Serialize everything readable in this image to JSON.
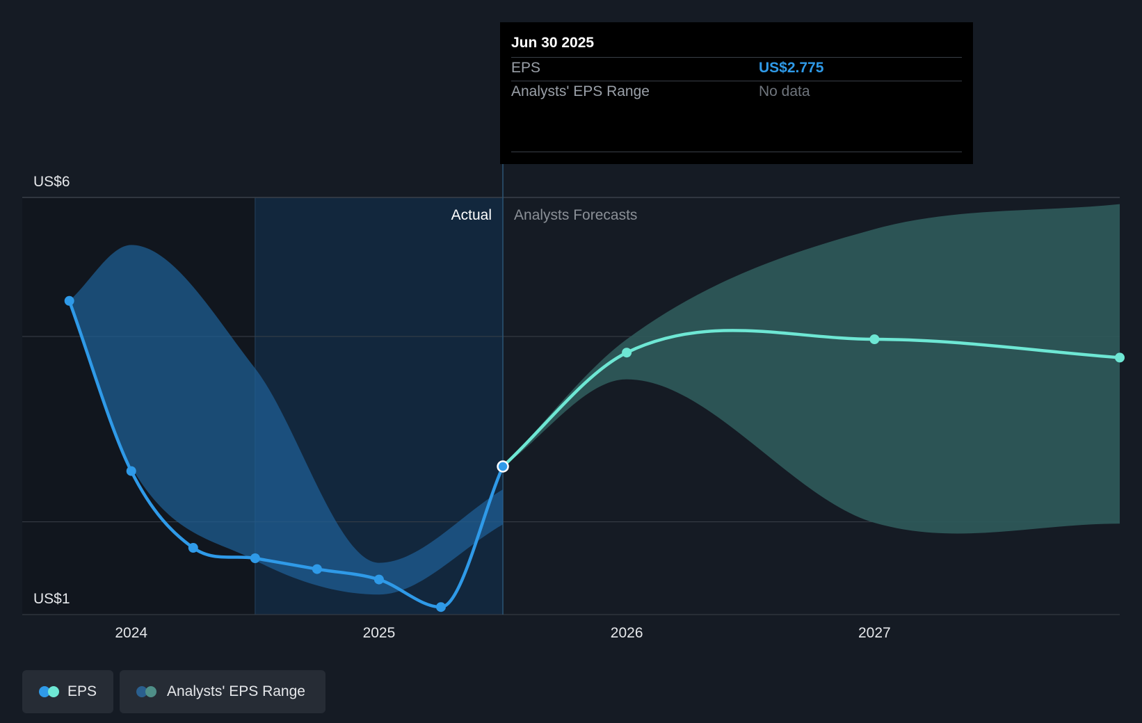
{
  "tooltip": {
    "date": "Jun 30 2025",
    "rows": [
      {
        "label": "EPS",
        "value": "US$2.775",
        "color": "#2f9ae8"
      },
      {
        "label": "Analysts' EPS Range",
        "value": "No data",
        "color": "#6f757d"
      }
    ]
  },
  "legend": [
    {
      "label": "EPS",
      "color_a": "#2f9ae8",
      "color_b": "#6ee7d4"
    },
    {
      "label": "Analysts' EPS Range",
      "color_a": "#2a5f8e",
      "color_b": "#4f8f88"
    }
  ],
  "colors": {
    "background": "#151b24",
    "actual_line": "#2f9ae8",
    "forecast_line": "#6ee7d4",
    "actual_band": "#1f5f95",
    "forecast_band": "#2f5b5b",
    "grid": "#3a4049"
  },
  "chart_data": {
    "type": "line",
    "y_axis": {
      "min": 1,
      "max": 6,
      "tick_labels": [
        {
          "value": 6,
          "label": "US$6"
        },
        {
          "value": 1,
          "label": "US$1"
        }
      ],
      "gridlines": [
        6,
        4.333,
        2.111,
        1
      ]
    },
    "x_axis": {
      "ticks": [
        {
          "value": 2024.0,
          "label": "2024"
        },
        {
          "value": 2025.0,
          "label": "2025"
        },
        {
          "value": 2026.0,
          "label": "2026"
        },
        {
          "value": 2027.0,
          "label": "2027"
        }
      ],
      "min": 2023.56,
      "max": 2027.99
    },
    "divider": {
      "x": 2025.5,
      "left_label": "Actual",
      "right_label": "Analysts Forecasts"
    },
    "highlight_start": 2024.5,
    "series": [
      {
        "name": "EPS (Actual)",
        "points": [
          {
            "x": 2023.75,
            "y": 4.76
          },
          {
            "x": 2024.0,
            "y": 2.72
          },
          {
            "x": 2024.25,
            "y": 1.8
          },
          {
            "x": 2024.5,
            "y": 1.675
          },
          {
            "x": 2024.75,
            "y": 1.545
          },
          {
            "x": 2025.0,
            "y": 1.42
          },
          {
            "x": 2025.25,
            "y": 1.09
          },
          {
            "x": 2025.5,
            "y": 2.775
          }
        ]
      },
      {
        "name": "EPS (Forecast)",
        "points": [
          {
            "x": 2025.5,
            "y": 2.775
          },
          {
            "x": 2026.0,
            "y": 4.14
          },
          {
            "x": 2027.0,
            "y": 4.3
          },
          {
            "x": 2027.99,
            "y": 4.08
          }
        ]
      }
    ],
    "actual_range": {
      "upper": [
        {
          "x": 2023.75,
          "y": 4.76
        },
        {
          "x": 2024.0,
          "y": 5.43
        },
        {
          "x": 2024.5,
          "y": 3.95
        },
        {
          "x": 2025.0,
          "y": 1.62
        },
        {
          "x": 2025.5,
          "y": 2.5
        }
      ],
      "lower": [
        {
          "x": 2025.5,
          "y": 2.08
        },
        {
          "x": 2025.0,
          "y": 1.24
        },
        {
          "x": 2024.5,
          "y": 1.65
        },
        {
          "x": 2024.0,
          "y": 2.77
        },
        {
          "x": 2023.75,
          "y": 4.76
        }
      ]
    },
    "forecast_range": {
      "upper": [
        {
          "x": 2025.5,
          "y": 2.775
        },
        {
          "x": 2026.0,
          "y": 4.3
        },
        {
          "x": 2027.0,
          "y": 5.62
        },
        {
          "x": 2027.99,
          "y": 5.92
        }
      ],
      "lower": [
        {
          "x": 2027.99,
          "y": 2.09
        },
        {
          "x": 2027.0,
          "y": 2.1
        },
        {
          "x": 2026.0,
          "y": 3.82
        },
        {
          "x": 2025.5,
          "y": 2.775
        }
      ]
    }
  }
}
